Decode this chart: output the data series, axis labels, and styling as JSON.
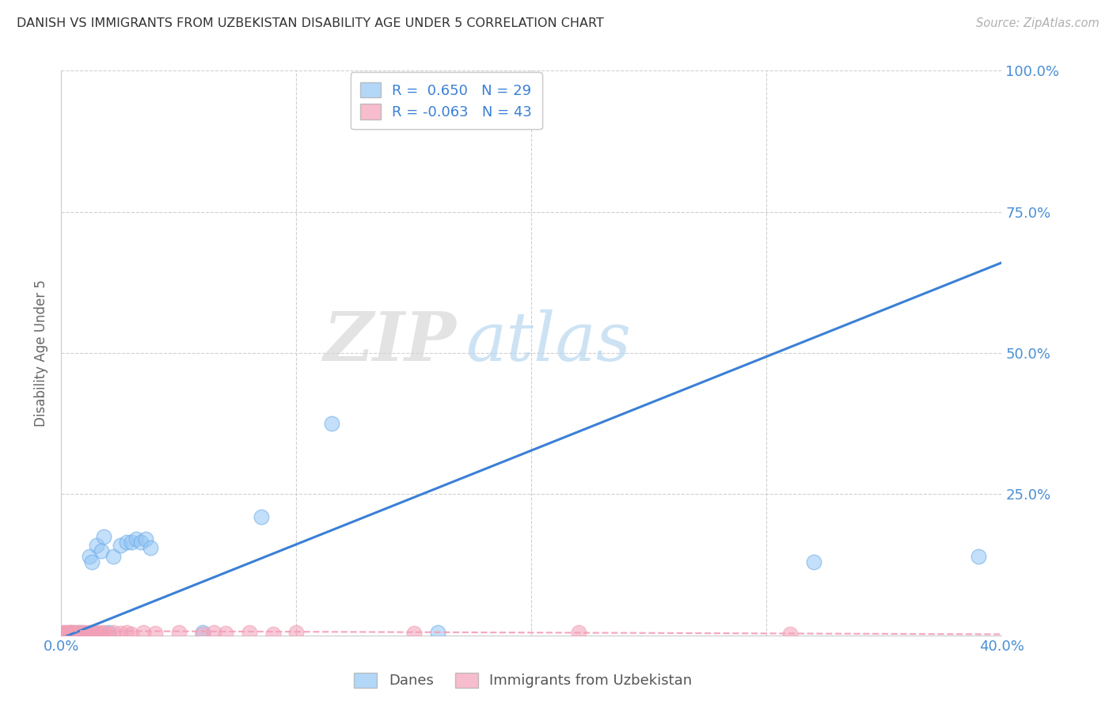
{
  "title": "DANISH VS IMMIGRANTS FROM UZBEKISTAN DISABILITY AGE UNDER 5 CORRELATION CHART",
  "source": "Source: ZipAtlas.com",
  "ylabel": "Disability Age Under 5",
  "xlim": [
    0.0,
    0.4
  ],
  "ylim": [
    0.0,
    1.0
  ],
  "danes_color": "#93c6f5",
  "immigrants_color": "#f4a0b8",
  "trend_blue_color": "#3a80d5",
  "trend_pink_color": "#f4a0b8",
  "danes_R": 0.65,
  "danes_N": 29,
  "immigrants_R": -0.063,
  "immigrants_N": 43,
  "watermark_zip": "ZIP",
  "watermark_atlas": "atlas",
  "danes_x": [
    0.002,
    0.003,
    0.004,
    0.005,
    0.006,
    0.007,
    0.008,
    0.009,
    0.01,
    0.012,
    0.013,
    0.015,
    0.017,
    0.018,
    0.02,
    0.022,
    0.025,
    0.028,
    0.03,
    0.032,
    0.034,
    0.036,
    0.038,
    0.06,
    0.085,
    0.115,
    0.16,
    0.32,
    0.39
  ],
  "danes_y": [
    0.004,
    0.003,
    0.005,
    0.003,
    0.004,
    0.003,
    0.005,
    0.003,
    0.004,
    0.14,
    0.13,
    0.16,
    0.15,
    0.175,
    0.005,
    0.14,
    0.16,
    0.165,
    0.165,
    0.17,
    0.165,
    0.17,
    0.155,
    0.005,
    0.21,
    0.375,
    0.005,
    0.13,
    0.14
  ],
  "immigrants_x": [
    0.001,
    0.001,
    0.002,
    0.002,
    0.003,
    0.003,
    0.004,
    0.004,
    0.005,
    0.005,
    0.006,
    0.006,
    0.007,
    0.007,
    0.008,
    0.009,
    0.01,
    0.01,
    0.011,
    0.012,
    0.013,
    0.014,
    0.015,
    0.016,
    0.017,
    0.018,
    0.02,
    0.022,
    0.025,
    0.028,
    0.03,
    0.035,
    0.04,
    0.05,
    0.06,
    0.065,
    0.07,
    0.08,
    0.09,
    0.1,
    0.15,
    0.22,
    0.31
  ],
  "immigrants_y": [
    0.004,
    0.006,
    0.003,
    0.005,
    0.004,
    0.006,
    0.003,
    0.005,
    0.004,
    0.006,
    0.003,
    0.005,
    0.004,
    0.006,
    0.003,
    0.005,
    0.004,
    0.006,
    0.003,
    0.005,
    0.004,
    0.006,
    0.003,
    0.005,
    0.004,
    0.006,
    0.003,
    0.005,
    0.004,
    0.006,
    0.003,
    0.005,
    0.004,
    0.006,
    0.003,
    0.005,
    0.004,
    0.006,
    0.003,
    0.005,
    0.004,
    0.006,
    0.003
  ],
  "blue_trend": [
    0.0,
    -0.005,
    0.4,
    0.66
  ],
  "pink_trend": [
    0.0,
    0.008,
    0.4,
    0.002
  ],
  "background_color": "#ffffff",
  "grid_color": "#d0d0d0",
  "title_color": "#333333",
  "axis_tick_color": "#4a8fd4",
  "ylabel_color": "#666666",
  "legend_text_color": "#3a80d5",
  "bottom_legend_color": "#555555"
}
